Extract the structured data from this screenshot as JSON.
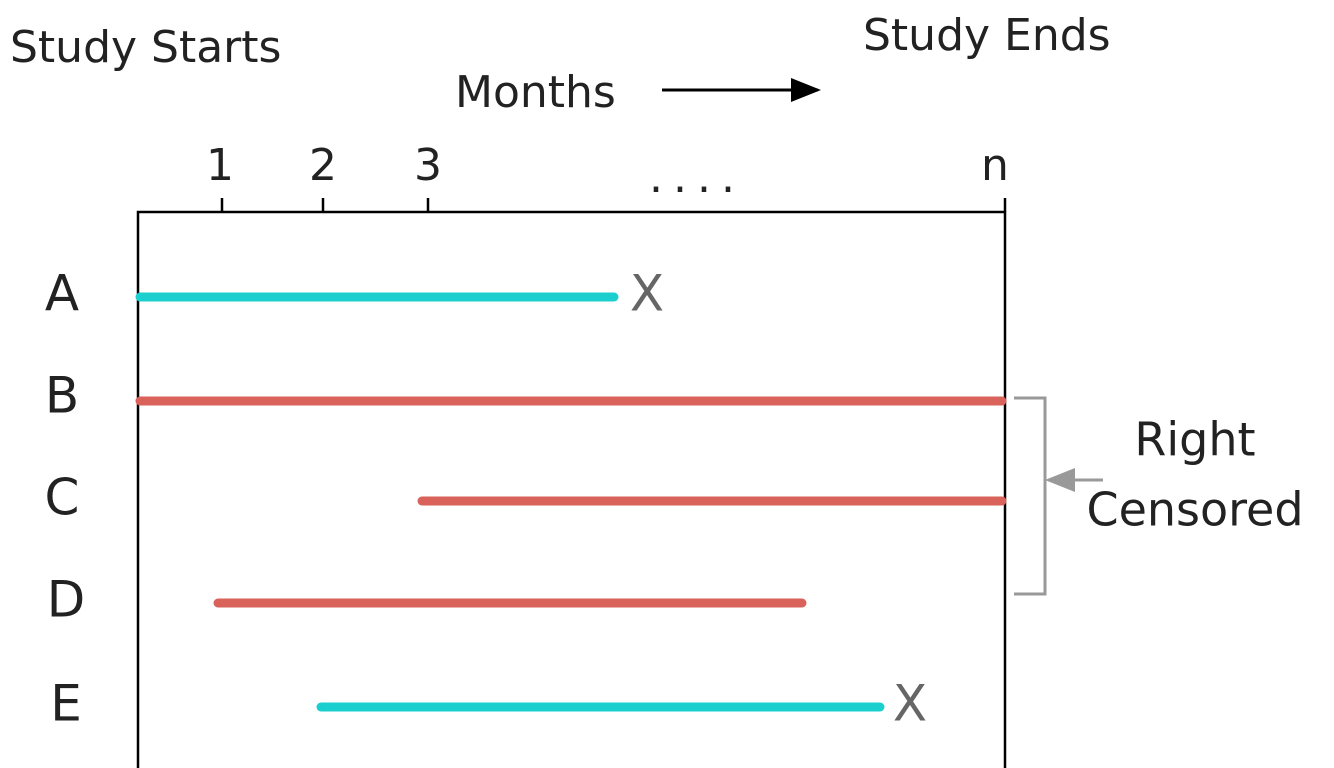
{
  "header": {
    "start": "Study Starts",
    "end": "Study Ends",
    "axis_label": "Months"
  },
  "ticks": [
    "1",
    "2",
    "3",
    "....",
    "n"
  ],
  "rows": [
    {
      "label": "A",
      "event": "X"
    },
    {
      "label": "B"
    },
    {
      "label": "C"
    },
    {
      "label": "D"
    },
    {
      "label": "E",
      "event": "X"
    }
  ],
  "bracket": {
    "line1": "Right",
    "line2": "Censored"
  }
}
